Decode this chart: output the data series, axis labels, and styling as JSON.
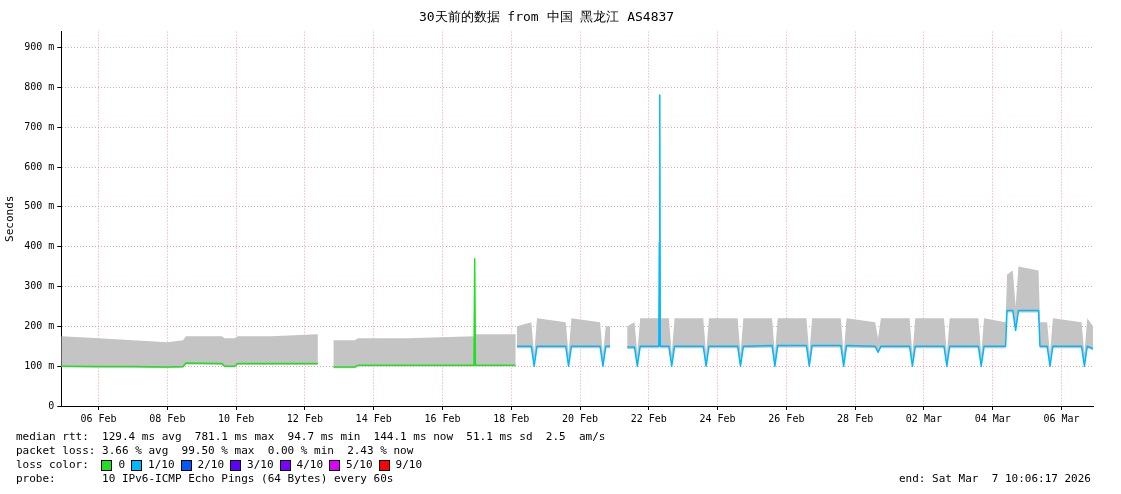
{
  "chart_data": {
    "type": "line",
    "title": "30天前的数据 from 中国 黑龙江 AS4837",
    "ylabel": "Seconds",
    "xlim": [
      "2026-02-05T10:00",
      "2026-03-07T10:00"
    ],
    "xticks": [
      {
        "value": "2026-02-06T12:00",
        "label": "06 Feb"
      },
      {
        "value": "2026-02-08T12:00",
        "label": "08 Feb"
      },
      {
        "value": "2026-02-10T12:00",
        "label": "10 Feb"
      },
      {
        "value": "2026-02-12T12:00",
        "label": "12 Feb"
      },
      {
        "value": "2026-02-14T12:00",
        "label": "14 Feb"
      },
      {
        "value": "2026-02-16T12:00",
        "label": "16 Feb"
      },
      {
        "value": "2026-02-18T12:00",
        "label": "18 Feb"
      },
      {
        "value": "2026-02-20T12:00",
        "label": "20 Feb"
      },
      {
        "value": "2026-02-22T12:00",
        "label": "22 Feb"
      },
      {
        "value": "2026-02-24T12:00",
        "label": "24 Feb"
      },
      {
        "value": "2026-02-26T12:00",
        "label": "26 Feb"
      },
      {
        "value": "2026-02-28T12:00",
        "label": "28 Feb"
      },
      {
        "value": "2026-03-02T12:00",
        "label": "02 Mar"
      },
      {
        "value": "2026-03-04T12:00",
        "label": "04 Mar"
      },
      {
        "value": "2026-03-06T12:00",
        "label": "06 Mar"
      }
    ],
    "ylim": [
      0,
      940
    ],
    "yticks": [
      0,
      {
        "value": 100,
        "label": "100 m"
      },
      {
        "value": 200,
        "label": "200 m"
      },
      {
        "value": 300,
        "label": "300 m"
      },
      {
        "value": 400,
        "label": "400 m"
      },
      {
        "value": 500,
        "label": "500 m"
      },
      {
        "value": 600,
        "label": "600 m"
      },
      {
        "value": 700,
        "label": "700 m"
      },
      {
        "value": 800,
        "label": "800 m"
      },
      {
        "value": 900,
        "label": "900 m"
      }
    ],
    "grid": true,
    "legend": "bottom",
    "legend_title": "loss color:",
    "series": [
      {
        "name": "0",
        "color": "#20e020",
        "x": [
          "2026-02-05T10:00",
          "2026-02-06T12:00",
          "2026-02-07T12:00",
          "2026-02-08T12:00",
          "2026-02-08T23:00",
          "2026-02-09T01:00",
          "2026-02-10T02:00",
          "2026-02-10T04:00",
          "2026-02-10T11:00",
          "2026-02-10T13:00",
          "2026-02-11T12:00",
          "2026-02-12T21:00",
          "2026-02-13T00:00",
          "2026-02-13T08:00",
          "2026-02-13T23:00",
          "2026-02-14T01:00",
          "2026-02-15T12:00",
          "2026-02-17T10:00",
          "2026-02-17T10:30",
          "2026-02-17T11:00",
          "2026-02-18T15:00"
        ],
        "values": [
          100,
          99,
          99,
          98,
          99,
          108,
          107,
          100,
          100,
          107,
          107,
          107,
          null,
          98,
          98,
          102,
          102,
          102,
          370,
          102,
          102
        ],
        "lower": [
          97,
          96,
          96,
          95,
          96,
          104,
          103,
          97,
          97,
          103,
          103,
          103,
          null,
          95,
          95,
          99,
          99,
          99,
          100,
          99,
          99
        ],
        "upper": [
          175,
          170,
          165,
          160,
          165,
          175,
          175,
          170,
          170,
          175,
          175,
          180,
          null,
          165,
          165,
          170,
          170,
          175,
          370,
          180,
          180
        ]
      },
      {
        "name": "1/10",
        "color": "#00b8ff",
        "x": [
          "2026-02-18T16:00",
          "2026-02-19T02:00",
          "2026-02-19T04:00",
          "2026-02-19T06:00",
          "2026-02-20T02:00",
          "2026-02-20T04:00",
          "2026-02-20T06:00",
          "2026-02-21T02:00",
          "2026-02-21T04:00",
          "2026-02-21T06:00",
          "2026-02-21T09:00",
          "2026-02-21T12:00",
          "2026-02-21T21:00",
          "2026-02-22T02:00",
          "2026-02-22T04:00",
          "2026-02-22T06:00",
          "2026-02-22T19:00",
          "2026-02-22T19:20",
          "2026-02-22T19:40",
          "2026-02-22T20:00",
          "2026-02-23T02:00",
          "2026-02-23T04:00",
          "2026-02-23T06:00",
          "2026-02-24T02:00",
          "2026-02-24T04:00",
          "2026-02-24T06:00",
          "2026-02-25T02:00",
          "2026-02-25T04:00",
          "2026-02-25T06:00",
          "2026-02-26T02:00",
          "2026-02-26T04:00",
          "2026-02-26T06:00",
          "2026-02-27T02:00",
          "2026-02-27T04:00",
          "2026-02-27T06:00",
          "2026-02-28T02:00",
          "2026-02-28T04:00",
          "2026-02-28T06:00",
          "2026-03-01T02:00",
          "2026-03-01T04:00",
          "2026-03-01T06:00",
          "2026-03-02T02:00",
          "2026-03-02T04:00",
          "2026-03-02T06:00",
          "2026-03-03T02:00",
          "2026-03-03T04:00",
          "2026-03-03T06:00",
          "2026-03-04T02:00",
          "2026-03-04T04:00",
          "2026-03-04T06:00",
          "2026-03-04T21:00",
          "2026-03-04T22:00",
          "2026-03-05T02:00",
          "2026-03-05T04:00",
          "2026-03-05T06:00",
          "2026-03-05T20:00",
          "2026-03-05T21:00",
          "2026-03-06T02:00",
          "2026-03-06T04:00",
          "2026-03-06T06:00",
          "2026-03-07T02:00",
          "2026-03-07T04:00",
          "2026-03-07T06:00",
          "2026-03-07T10:00"
        ],
        "values": [
          150,
          150,
          100,
          150,
          150,
          100,
          150,
          150,
          100,
          150,
          150,
          null,
          148,
          148,
          100,
          150,
          150,
          410,
          781,
          150,
          150,
          100,
          150,
          150,
          100,
          150,
          150,
          100,
          150,
          152,
          100,
          152,
          152,
          100,
          152,
          152,
          100,
          152,
          150,
          135,
          150,
          150,
          100,
          150,
          150,
          100,
          150,
          150,
          100,
          150,
          150,
          240,
          240,
          190,
          240,
          240,
          150,
          150,
          100,
          150,
          150,
          100,
          150,
          144
        ],
        "lower": [
          145,
          145,
          97,
          145,
          145,
          97,
          145,
          145,
          97,
          145,
          145,
          null,
          143,
          143,
          97,
          145,
          145,
          150,
          150,
          145,
          145,
          97,
          145,
          145,
          97,
          145,
          145,
          97,
          145,
          147,
          97,
          147,
          147,
          97,
          147,
          147,
          97,
          147,
          145,
          132,
          145,
          145,
          97,
          145,
          145,
          97,
          145,
          145,
          97,
          145,
          145,
          235,
          235,
          187,
          235,
          235,
          145,
          145,
          97,
          145,
          145,
          97,
          145,
          140
        ],
        "upper": [
          200,
          210,
          130,
          220,
          210,
          130,
          220,
          210,
          130,
          200,
          200,
          null,
          200,
          210,
          130,
          220,
          220,
          410,
          781,
          220,
          220,
          130,
          220,
          220,
          130,
          220,
          220,
          130,
          220,
          220,
          130,
          220,
          220,
          130,
          220,
          220,
          130,
          220,
          210,
          170,
          220,
          220,
          130,
          220,
          220,
          130,
          220,
          220,
          130,
          220,
          210,
          330,
          340,
          250,
          350,
          340,
          210,
          210,
          130,
          220,
          210,
          130,
          220,
          200
        ]
      },
      {
        "name": "2/10",
        "color": "#0059ff"
      },
      {
        "name": "3/10",
        "color": "#5e00ff"
      },
      {
        "name": "4/10",
        "color": "#7e00ff"
      },
      {
        "name": "5/10",
        "color": "#dd00ff"
      },
      {
        "name": "9/10",
        "color": "#ff0000"
      }
    ],
    "annotations": [
      "median rtt:  129.4 ms avg  781.1 ms max  94.7 ms min  144.1 ms now  51.1 ms sd  2.5  am/s",
      "packet loss: 3.66 % avg  99.50 % max  0.00 % min  2.43 % now",
      "probe:       10 IPv6-ICMP Echo Pings (64 Bytes) every 60s",
      "end: Sat Mar  7 10:06:17 2026"
    ]
  }
}
